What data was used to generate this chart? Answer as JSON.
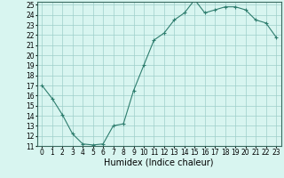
{
  "x": [
    0,
    1,
    2,
    3,
    4,
    5,
    6,
    7,
    8,
    9,
    10,
    11,
    12,
    13,
    14,
    15,
    16,
    17,
    18,
    19,
    20,
    21,
    22,
    23
  ],
  "y": [
    17,
    15.7,
    14.1,
    12.2,
    11.2,
    11.1,
    11.2,
    13.0,
    13.2,
    16.5,
    19.0,
    21.5,
    22.2,
    23.5,
    24.2,
    25.5,
    24.2,
    24.5,
    24.8,
    24.8,
    24.5,
    23.5,
    23.2,
    21.8
  ],
  "xlabel": "Humidex (Indice chaleur)",
  "xlim": [
    -0.5,
    23.5
  ],
  "ylim": [
    11,
    25.3
  ],
  "yticks": [
    11,
    12,
    13,
    14,
    15,
    16,
    17,
    18,
    19,
    20,
    21,
    22,
    23,
    24,
    25
  ],
  "xticks": [
    0,
    1,
    2,
    3,
    4,
    5,
    6,
    7,
    8,
    9,
    10,
    11,
    12,
    13,
    14,
    15,
    16,
    17,
    18,
    19,
    20,
    21,
    22,
    23
  ],
  "line_color": "#2e7d6e",
  "marker": "+",
  "bg_color": "#d8f5f0",
  "grid_color": "#9ecfca",
  "tick_fontsize": 5.5,
  "xlabel_fontsize": 7.0
}
